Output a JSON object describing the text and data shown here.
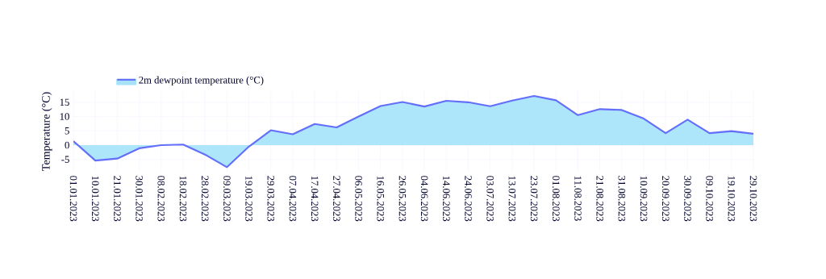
{
  "chart_data": {
    "type": "area",
    "ylabel": "Temperature (°C)",
    "categories": [
      "01.01.2023",
      "10.01.2023",
      "21.01.2023",
      "30.01.2023",
      "08.02.2023",
      "18.02.2023",
      "28.02.2023",
      "09.03.2023",
      "19.03.2023",
      "29.03.2023",
      "07.04.2023",
      "17.04.2023",
      "27.04.2023",
      "06.05.2023",
      "16.05.2023",
      "26.05.2023",
      "04.06.2023",
      "14.06.2023",
      "24.06.2023",
      "03.07.2023",
      "13.07.2023",
      "23.07.2023",
      "01.08.2023",
      "11.08.2023",
      "21.08.2023",
      "31.08.2023",
      "10.09.2023",
      "20.09.2023",
      "30.09.2023",
      "09.10.2023",
      "19.10.2023",
      "29.10.2023"
    ],
    "series": [
      {
        "name": "2m dewpoint temperature (°C)",
        "color": "#636efa",
        "values": [
          1.4,
          -5.4,
          -4.7,
          -1.1,
          0,
          0.2,
          -3.3,
          -7.7,
          -0.5,
          5.2,
          3.8,
          7.4,
          6.2,
          10,
          13.7,
          15.1,
          13.5,
          15.5,
          15,
          13.6,
          15.6,
          17.2,
          15.7,
          10.5,
          12.6,
          12.3,
          9.3,
          4.2,
          8.9,
          4.2,
          4.9,
          4.0
        ]
      }
    ],
    "ylim": [
      -9.3,
      18.9
    ],
    "yticks": [
      -5,
      0,
      5,
      10,
      15
    ],
    "grid": true,
    "legend": "top left"
  }
}
